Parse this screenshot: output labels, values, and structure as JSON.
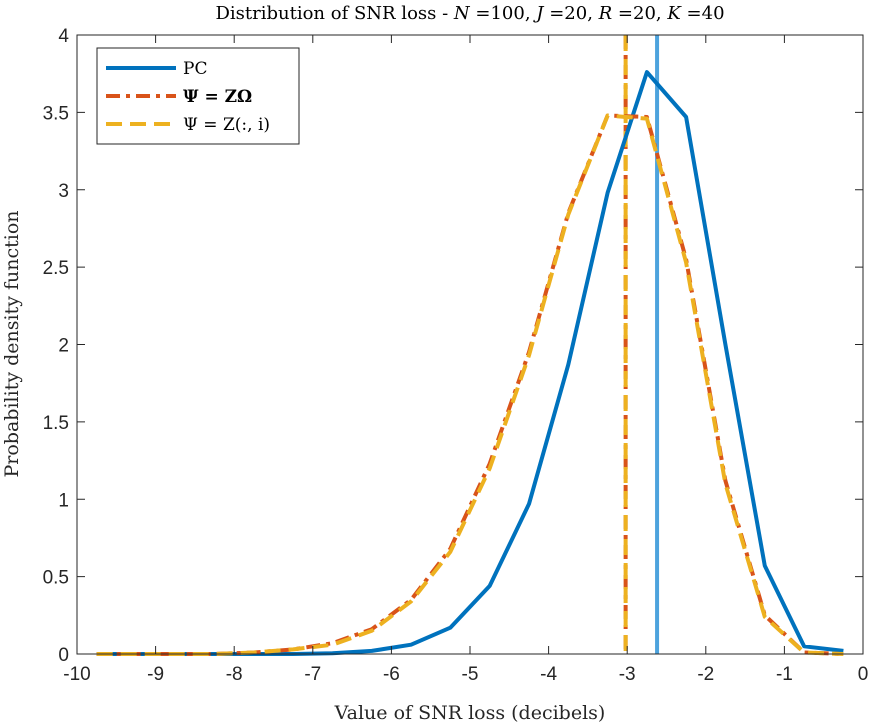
{
  "chart_data": {
    "type": "line",
    "title": "Distribution of SNR loss - N =100, J =20, R =20, K =40",
    "title_parts": {
      "prefix": "Distribution of SNR loss - ",
      "n_sym": "N",
      "n_val": " =100, ",
      "j_sym": "J",
      "j_val": " =20, ",
      "r_sym": "R",
      "r_val": " =20, ",
      "k_sym": "K",
      "k_val": " =40"
    },
    "xlabel": "Value of SNR loss (decibels)",
    "ylabel": "Probability density function",
    "xlim": [
      -10,
      0
    ],
    "ylim": [
      0,
      4
    ],
    "xticks": [
      -10,
      -9,
      -8,
      -7,
      -6,
      -5,
      -4,
      -3,
      -2,
      -1,
      0
    ],
    "yticks": [
      0,
      0.5,
      1,
      1.5,
      2,
      2.5,
      3,
      3.5,
      4
    ],
    "xtick_labels": [
      "-10",
      "-9",
      "-8",
      "-7",
      "-6",
      "-5",
      "-4",
      "-3",
      "-2",
      "-1",
      "0"
    ],
    "ytick_labels": [
      "0",
      "0.5",
      "1",
      "1.5",
      "2",
      "2.5",
      "3",
      "3.5",
      "4"
    ],
    "grid": false,
    "legend_position": "top-left",
    "series": [
      {
        "name": "PC",
        "legend_label": "PC",
        "color": "#0072BD",
        "style": "solid",
        "x": [
          -9.75,
          -9.25,
          -8.75,
          -8.25,
          -7.75,
          -7.25,
          -6.75,
          -6.25,
          -5.75,
          -5.25,
          -4.75,
          -4.25,
          -3.75,
          -3.25,
          -2.75,
          -2.25,
          -1.75,
          -1.25,
          -0.75,
          -0.25
        ],
        "values": [
          0,
          0,
          0,
          0,
          0,
          0,
          0.005,
          0.02,
          0.06,
          0.17,
          0.44,
          0.97,
          1.87,
          2.98,
          3.76,
          3.47,
          2.0,
          0.57,
          0.05,
          0.02
        ]
      },
      {
        "name": "Psi = Z Omega",
        "legend_label": "Ψ = ZΩ",
        "color": "#D95319",
        "style": "dashdot",
        "x": [
          -9.75,
          -9.25,
          -8.75,
          -8.25,
          -7.75,
          -7.25,
          -6.75,
          -6.25,
          -5.75,
          -5.25,
          -4.75,
          -4.25,
          -3.75,
          -3.25,
          -2.75,
          -2.25,
          -1.75,
          -1.25,
          -0.75,
          -0.25
        ],
        "values": [
          0,
          0,
          0,
          0,
          0.01,
          0.03,
          0.07,
          0.16,
          0.35,
          0.68,
          1.23,
          1.95,
          2.85,
          3.48,
          3.47,
          2.55,
          1.12,
          0.25,
          0.01,
          0
        ]
      },
      {
        "name": "Psi = Z(:,i)",
        "legend_label": "Ψ = Z(:, i)",
        "color": "#EDB120",
        "style": "dashed",
        "x": [
          -9.75,
          -9.25,
          -8.75,
          -8.25,
          -7.75,
          -7.25,
          -6.75,
          -6.25,
          -5.75,
          -5.25,
          -4.75,
          -4.25,
          -3.75,
          -3.25,
          -2.75,
          -2.25,
          -1.75,
          -1.25,
          -0.75,
          -0.25
        ],
        "values": [
          0,
          0,
          0,
          0,
          0.01,
          0.03,
          0.06,
          0.15,
          0.34,
          0.66,
          1.2,
          1.93,
          2.84,
          3.48,
          3.46,
          2.53,
          1.1,
          0.24,
          0.01,
          0
        ]
      }
    ],
    "vertical_lines": [
      {
        "x": -2.62,
        "color": "#4DA3DD",
        "style": "solid",
        "series": "PC"
      },
      {
        "x": -3.02,
        "color": "#D95319",
        "style": "dashdot",
        "series": "Psi = Z Omega"
      },
      {
        "x": -3.02,
        "color": "#EDB120",
        "style": "dashed",
        "series": "Psi = Z(:,i)"
      }
    ]
  }
}
